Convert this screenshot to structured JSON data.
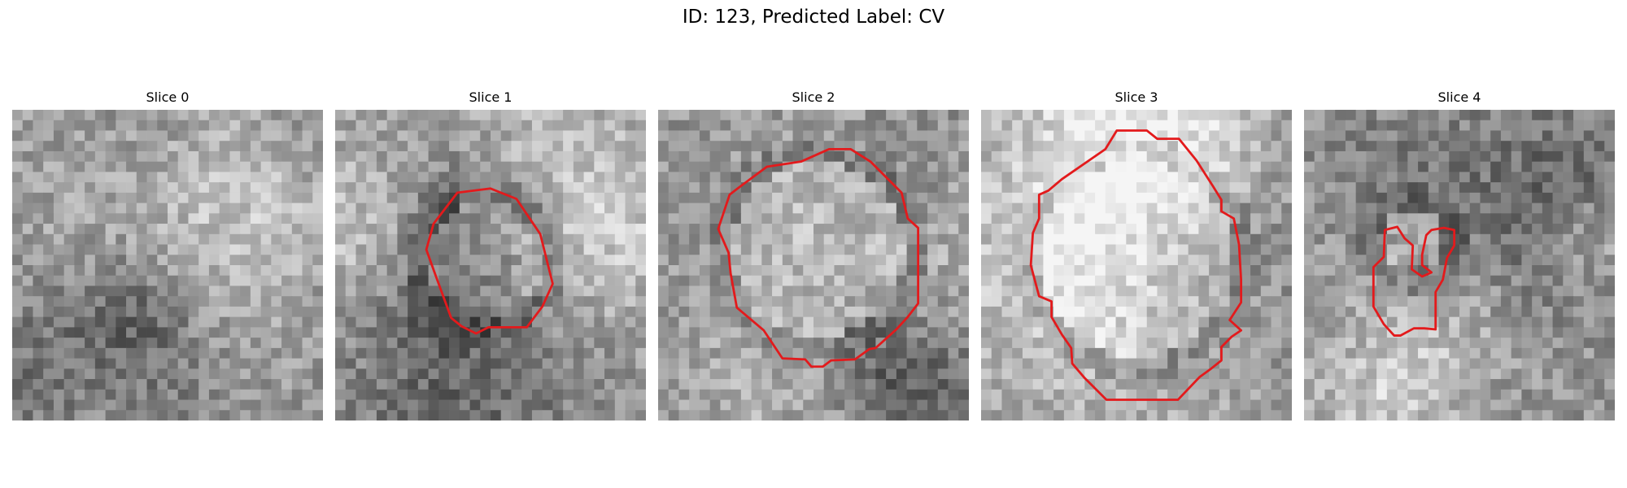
{
  "figure": {
    "title": "ID: 123, Predicted Label: CV",
    "contour_color": "#e31a1c",
    "colormap": "grayscale",
    "slices": [
      {
        "label": "Slice 0",
        "has_contour": false
      },
      {
        "label": "Slice 1",
        "has_contour": true
      },
      {
        "label": "Slice 2",
        "has_contour": true
      },
      {
        "label": "Slice 3",
        "has_contour": true
      },
      {
        "label": "Slice 4",
        "has_contour": true
      }
    ]
  }
}
